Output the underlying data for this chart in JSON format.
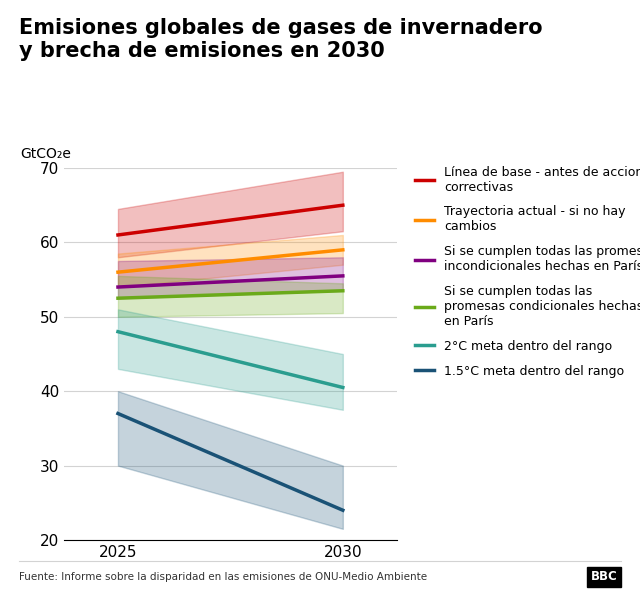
{
  "title": "Emisiones globales de gases de invernadero\ny brecha de emisiones en 2030",
  "ylabel": "GtCO₂e",
  "xlabel_ticks": [
    2025,
    2030
  ],
  "ylim": [
    20,
    70
  ],
  "footnote": "Fuente: Informe sobre la disparidad en las emisiones de ONU-Medio Ambiente",
  "series": [
    {
      "name": "Línea de base - antes de acciones\ncorrectivas",
      "color": "#cc0000",
      "line_2025": 61.0,
      "line_2030": 65.0,
      "band_upper_2025": 64.5,
      "band_lower_2025": 58.0,
      "band_upper_2030": 69.5,
      "band_lower_2030": 61.5
    },
    {
      "name": "Trayectoria actual - si no hay\ncambios",
      "color": "#ff8c00",
      "line_2025": 56.0,
      "line_2030": 59.0,
      "band_upper_2025": 58.5,
      "band_lower_2025": 54.0,
      "band_upper_2030": 61.0,
      "band_lower_2030": 57.0
    },
    {
      "name": "Si se cumplen todas las promesas\nincondicionales hechas en París",
      "color": "#800080",
      "line_2025": 54.0,
      "line_2030": 55.5,
      "band_upper_2025": 57.5,
      "band_lower_2025": 52.5,
      "band_upper_2030": 58.0,
      "band_lower_2030": 53.5
    },
    {
      "name": "Si se cumplen todas las\npromesas condicionales hechas\nen París",
      "color": "#6aaa1a",
      "line_2025": 52.5,
      "line_2030": 53.5,
      "band_upper_2025": 55.5,
      "band_lower_2025": 50.0,
      "band_upper_2030": 54.5,
      "band_lower_2030": 50.5
    },
    {
      "name": "2°C meta dentro del rango",
      "color": "#2a9d8f",
      "line_2025": 48.0,
      "line_2030": 40.5,
      "band_upper_2025": 51.0,
      "band_lower_2025": 43.0,
      "band_upper_2030": 45.0,
      "band_lower_2030": 37.5
    },
    {
      "name": "1.5°C meta dentro del rango",
      "color": "#1a5276",
      "line_2025": 37.0,
      "line_2030": 24.0,
      "band_upper_2025": 40.0,
      "band_lower_2025": 30.0,
      "band_upper_2030": 30.0,
      "band_lower_2030": 21.5
    }
  ],
  "background_color": "#ffffff",
  "title_fontsize": 15,
  "legend_fontsize": 9,
  "tick_fontsize": 11
}
